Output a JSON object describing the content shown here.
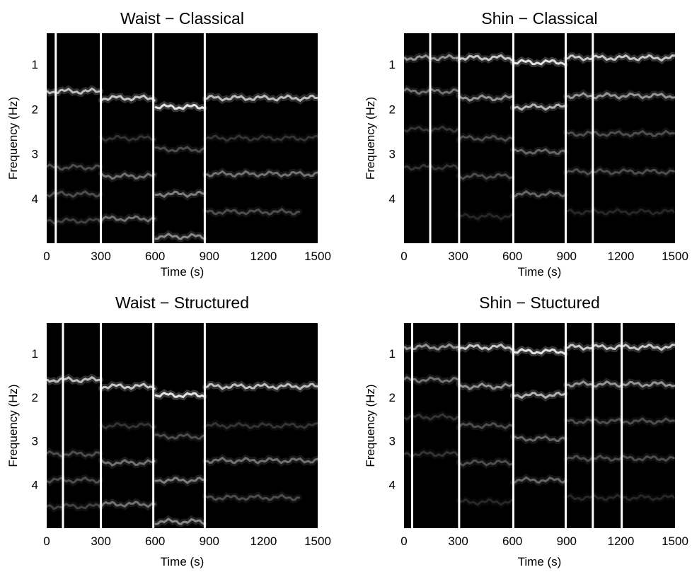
{
  "figure": {
    "background": "#ffffff",
    "plot_background": "#000000",
    "band_color": "#ffffff",
    "boundary_color": "#ffffff"
  },
  "chart_data": [
    {
      "type": "heatmap",
      "title": "Waist − Classical",
      "xlabel": "Time (s)",
      "ylabel": "Frequency (Hz)",
      "xlim": [
        0,
        1500
      ],
      "ylim": [
        0.3,
        5.0
      ],
      "y_inverted": true,
      "x_ticks": [
        "0",
        "300",
        "600",
        "900",
        "1200",
        "1500"
      ],
      "y_ticks": [
        "1",
        "2",
        "3",
        "4"
      ],
      "x_tick_values": [
        0,
        300,
        600,
        900,
        1200,
        1500
      ],
      "y_tick_values": [
        1,
        2,
        3,
        4
      ],
      "boundaries": [
        50,
        300,
        590,
        875
      ],
      "bands": [
        {
          "start": 0,
          "end": 300,
          "freq": 1.6,
          "level": 0.8
        },
        {
          "start": 300,
          "end": 600,
          "freq": 1.75,
          "level": 0.85
        },
        {
          "start": 600,
          "end": 875,
          "freq": 1.95,
          "level": 1.0
        },
        {
          "start": 875,
          "end": 1500,
          "freq": 1.75,
          "level": 0.8
        },
        {
          "start": 0,
          "end": 300,
          "freq": 3.3,
          "level": 0.3
        },
        {
          "start": 300,
          "end": 600,
          "freq": 3.5,
          "level": 0.45
        },
        {
          "start": 600,
          "end": 875,
          "freq": 3.9,
          "level": 0.5
        },
        {
          "start": 875,
          "end": 1500,
          "freq": 3.45,
          "level": 0.45
        },
        {
          "start": 0,
          "end": 300,
          "freq": 3.9,
          "level": 0.3
        },
        {
          "start": 300,
          "end": 600,
          "freq": 4.45,
          "level": 0.45
        },
        {
          "start": 600,
          "end": 875,
          "freq": 2.9,
          "level": 0.3
        },
        {
          "start": 875,
          "end": 1400,
          "freq": 4.3,
          "level": 0.3
        },
        {
          "start": 0,
          "end": 300,
          "freq": 4.5,
          "level": 0.25
        },
        {
          "start": 300,
          "end": 600,
          "freq": 2.65,
          "level": 0.2
        },
        {
          "start": 600,
          "end": 875,
          "freq": 4.85,
          "level": 0.55
        },
        {
          "start": 875,
          "end": 1500,
          "freq": 2.65,
          "level": 0.2
        }
      ]
    },
    {
      "type": "heatmap",
      "title": "Shin − Classical",
      "xlabel": "Time (s)",
      "ylabel": "Frequency (Hz)",
      "xlim": [
        0,
        1500
      ],
      "ylim": [
        0.3,
        5.0
      ],
      "y_inverted": true,
      "x_ticks": [
        "0",
        "300",
        "600",
        "900",
        "1200",
        "1500"
      ],
      "y_ticks": [
        "1",
        "2",
        "3",
        "4"
      ],
      "x_tick_values": [
        0,
        300,
        600,
        900,
        1200,
        1500
      ],
      "y_tick_values": [
        1,
        2,
        3,
        4
      ],
      "boundaries": [
        145,
        305,
        605,
        895,
        1045
      ],
      "bands": [
        {
          "start": 0,
          "end": 300,
          "freq": 0.85,
          "level": 0.6
        },
        {
          "start": 300,
          "end": 600,
          "freq": 0.85,
          "level": 0.85
        },
        {
          "start": 600,
          "end": 895,
          "freq": 0.95,
          "level": 1.0
        },
        {
          "start": 895,
          "end": 1500,
          "freq": 0.85,
          "level": 0.85
        },
        {
          "start": 0,
          "end": 300,
          "freq": 1.6,
          "level": 0.45
        },
        {
          "start": 300,
          "end": 600,
          "freq": 1.75,
          "level": 0.6
        },
        {
          "start": 600,
          "end": 895,
          "freq": 1.95,
          "level": 0.75
        },
        {
          "start": 895,
          "end": 1500,
          "freq": 1.7,
          "level": 0.6
        },
        {
          "start": 0,
          "end": 300,
          "freq": 2.45,
          "level": 0.2
        },
        {
          "start": 300,
          "end": 600,
          "freq": 2.65,
          "level": 0.3
        },
        {
          "start": 600,
          "end": 895,
          "freq": 2.95,
          "level": 0.4
        },
        {
          "start": 895,
          "end": 1500,
          "freq": 2.55,
          "level": 0.3
        },
        {
          "start": 0,
          "end": 300,
          "freq": 3.3,
          "level": 0.2
        },
        {
          "start": 300,
          "end": 600,
          "freq": 3.5,
          "level": 0.3
        },
        {
          "start": 600,
          "end": 895,
          "freq": 3.9,
          "level": 0.4
        },
        {
          "start": 895,
          "end": 1500,
          "freq": 3.4,
          "level": 0.3
        },
        {
          "start": 300,
          "end": 600,
          "freq": 4.4,
          "level": 0.15
        },
        {
          "start": 895,
          "end": 1500,
          "freq": 4.3,
          "level": 0.15
        }
      ]
    },
    {
      "type": "heatmap",
      "title": "Waist − Structured",
      "xlabel": "Time (s)",
      "ylabel": "Frequency (Hz)",
      "xlim": [
        0,
        1500
      ],
      "ylim": [
        0.3,
        5.0
      ],
      "y_inverted": true,
      "x_ticks": [
        "0",
        "300",
        "600",
        "900",
        "1200",
        "1500"
      ],
      "y_ticks": [
        "1",
        "2",
        "3",
        "4"
      ],
      "x_tick_values": [
        0,
        300,
        600,
        900,
        1200,
        1500
      ],
      "y_tick_values": [
        1,
        2,
        3,
        4
      ],
      "boundaries": [
        90,
        300,
        590,
        875
      ],
      "bands": [
        {
          "start": 0,
          "end": 300,
          "freq": 1.6,
          "level": 0.8
        },
        {
          "start": 300,
          "end": 600,
          "freq": 1.75,
          "level": 0.85
        },
        {
          "start": 600,
          "end": 875,
          "freq": 1.95,
          "level": 1.0
        },
        {
          "start": 875,
          "end": 1500,
          "freq": 1.75,
          "level": 0.8
        },
        {
          "start": 0,
          "end": 300,
          "freq": 3.3,
          "level": 0.3
        },
        {
          "start": 300,
          "end": 600,
          "freq": 3.5,
          "level": 0.45
        },
        {
          "start": 600,
          "end": 875,
          "freq": 3.9,
          "level": 0.5
        },
        {
          "start": 875,
          "end": 1500,
          "freq": 3.45,
          "level": 0.45
        },
        {
          "start": 0,
          "end": 300,
          "freq": 3.9,
          "level": 0.3
        },
        {
          "start": 300,
          "end": 600,
          "freq": 4.45,
          "level": 0.45
        },
        {
          "start": 600,
          "end": 875,
          "freq": 2.9,
          "level": 0.3
        },
        {
          "start": 875,
          "end": 1400,
          "freq": 4.3,
          "level": 0.3
        },
        {
          "start": 0,
          "end": 300,
          "freq": 4.5,
          "level": 0.25
        },
        {
          "start": 300,
          "end": 600,
          "freq": 2.65,
          "level": 0.2
        },
        {
          "start": 600,
          "end": 875,
          "freq": 4.85,
          "level": 0.55
        },
        {
          "start": 875,
          "end": 1500,
          "freq": 2.65,
          "level": 0.2
        }
      ]
    },
    {
      "type": "heatmap",
      "title": "Shin − Stuctured",
      "xlabel": "Time (s)",
      "ylabel": "Frequency (Hz)",
      "xlim": [
        0,
        1500
      ],
      "ylim": [
        0.3,
        5.0
      ],
      "y_inverted": true,
      "x_ticks": [
        "0",
        "300",
        "600",
        "900",
        "1200",
        "1500"
      ],
      "y_ticks": [
        "1",
        "2",
        "3",
        "4"
      ],
      "x_tick_values": [
        0,
        300,
        600,
        900,
        1200,
        1500
      ],
      "y_tick_values": [
        1,
        2,
        3,
        4
      ],
      "boundaries": [
        45,
        305,
        605,
        895,
        1045,
        1205
      ],
      "bands": [
        {
          "start": 0,
          "end": 300,
          "freq": 0.85,
          "level": 0.6
        },
        {
          "start": 300,
          "end": 600,
          "freq": 0.85,
          "level": 0.85
        },
        {
          "start": 600,
          "end": 895,
          "freq": 0.95,
          "level": 1.0
        },
        {
          "start": 895,
          "end": 1500,
          "freq": 0.85,
          "level": 0.85
        },
        {
          "start": 0,
          "end": 300,
          "freq": 1.6,
          "level": 0.45
        },
        {
          "start": 300,
          "end": 600,
          "freq": 1.75,
          "level": 0.6
        },
        {
          "start": 600,
          "end": 895,
          "freq": 1.95,
          "level": 0.75
        },
        {
          "start": 895,
          "end": 1500,
          "freq": 1.7,
          "level": 0.6
        },
        {
          "start": 0,
          "end": 300,
          "freq": 2.45,
          "level": 0.2
        },
        {
          "start": 300,
          "end": 600,
          "freq": 2.65,
          "level": 0.3
        },
        {
          "start": 600,
          "end": 895,
          "freq": 2.95,
          "level": 0.4
        },
        {
          "start": 895,
          "end": 1500,
          "freq": 2.55,
          "level": 0.3
        },
        {
          "start": 0,
          "end": 300,
          "freq": 3.3,
          "level": 0.2
        },
        {
          "start": 300,
          "end": 600,
          "freq": 3.5,
          "level": 0.3
        },
        {
          "start": 600,
          "end": 895,
          "freq": 3.9,
          "level": 0.4
        },
        {
          "start": 895,
          "end": 1500,
          "freq": 3.4,
          "level": 0.3
        },
        {
          "start": 300,
          "end": 600,
          "freq": 4.4,
          "level": 0.15
        },
        {
          "start": 895,
          "end": 1500,
          "freq": 4.3,
          "level": 0.15
        }
      ]
    }
  ]
}
